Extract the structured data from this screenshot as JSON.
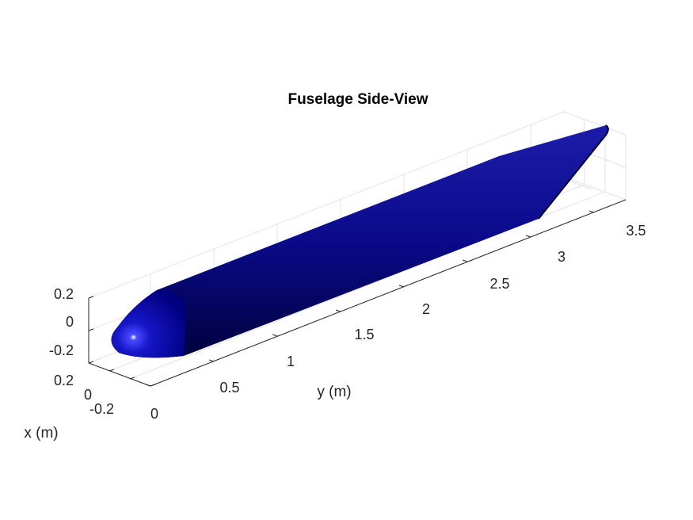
{
  "chart_data": {
    "type": "3d-surface",
    "title": "Fuselage Side-View",
    "xlabel": "x (m)",
    "ylabel": "y (m)",
    "zlabel": "",
    "x_ticks": [
      "-0.2",
      "0",
      "0.2"
    ],
    "y_ticks": [
      "0",
      "0.5",
      "1",
      "1.5",
      "2",
      "2.5",
      "3",
      "3.5"
    ],
    "z_ticks": [
      "-0.2",
      "0",
      "0.2"
    ],
    "xlim": [
      -0.3,
      0.3
    ],
    "ylim": [
      0,
      3.75
    ],
    "zlim": [
      -0.25,
      0.25
    ],
    "grid": true,
    "surface": {
      "name": "",
      "color": "#000080",
      "length": 3.7,
      "radius": 0.2,
      "nose_length": 0.4,
      "tail_start": 2.85
    }
  }
}
